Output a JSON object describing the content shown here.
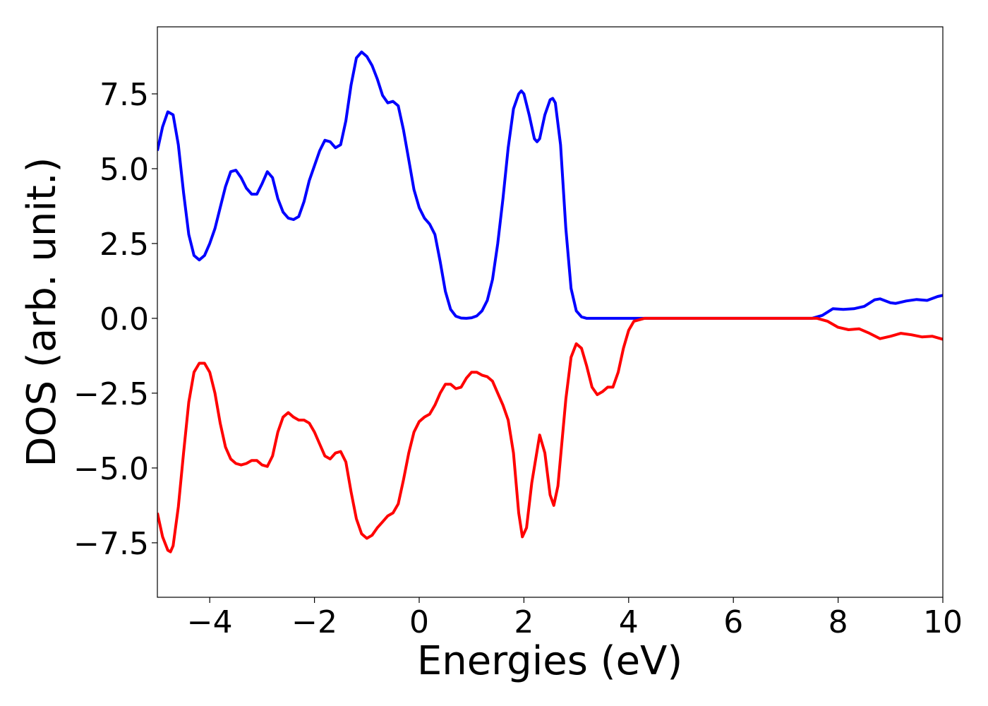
{
  "chart_data": {
    "type": "line",
    "xlabel": "Energies (eV)",
    "ylabel": "DOS (arb. unit.)",
    "xlim": [
      -5,
      10
    ],
    "ylim": [
      -9.32,
      9.74
    ],
    "xticks": [
      {
        "value": -4,
        "label": "−4"
      },
      {
        "value": -2,
        "label": "−2"
      },
      0,
      2,
      4,
      6,
      8,
      10
    ],
    "yticks": [
      {
        "value": -7.5,
        "label": "−7.5"
      },
      {
        "value": -5,
        "label": "−5.0"
      },
      {
        "value": -2.5,
        "label": "−2.5"
      },
      {
        "value": 0,
        "label": "0.0"
      },
      2.5,
      {
        "value": 5,
        "label": "5.0"
      },
      7.5
    ],
    "series": [
      {
        "color": "#0000ff",
        "x": [
          -5.0,
          -4.9,
          -4.8,
          -4.7,
          -4.6,
          -4.5,
          -4.4,
          -4.3,
          -4.2,
          -4.1,
          -4.0,
          -3.9,
          -3.8,
          -3.7,
          -3.6,
          -3.5,
          -3.4,
          -3.3,
          -3.2,
          -3.1,
          -3.0,
          -2.9,
          -2.8,
          -2.7,
          -2.6,
          -2.5,
          -2.4,
          -2.3,
          -2.2,
          -2.1,
          -2.0,
          -1.9,
          -1.8,
          -1.7,
          -1.6,
          -1.5,
          -1.4,
          -1.3,
          -1.2,
          -1.1,
          -1.0,
          -0.9,
          -0.8,
          -0.7,
          -0.6,
          -0.5,
          -0.4,
          -0.3,
          -0.2,
          -0.1,
          0.0,
          0.1,
          0.2,
          0.3,
          0.4,
          0.5,
          0.6,
          0.7,
          0.8,
          0.9,
          1.0,
          1.1,
          1.2,
          1.3,
          1.4,
          1.5,
          1.6,
          1.7,
          1.8,
          1.9,
          1.95,
          2.0,
          2.1,
          2.2,
          2.25,
          2.3,
          2.4,
          2.5,
          2.55,
          2.6,
          2.7,
          2.8,
          2.9,
          3.0,
          3.1,
          3.2,
          4.0,
          6.0,
          7.5,
          7.7,
          7.9,
          8.1,
          8.3,
          8.5,
          8.7,
          8.8,
          9.0,
          9.1,
          9.3,
          9.5,
          9.7,
          9.9,
          10.0
        ],
        "values": [
          5.6,
          6.4,
          6.9,
          6.8,
          5.8,
          4.2,
          2.8,
          2.1,
          1.95,
          2.1,
          2.5,
          3.0,
          3.7,
          4.4,
          4.9,
          4.95,
          4.7,
          4.35,
          4.15,
          4.15,
          4.5,
          4.9,
          4.7,
          4.0,
          3.55,
          3.35,
          3.3,
          3.4,
          3.9,
          4.6,
          5.1,
          5.6,
          5.95,
          5.9,
          5.7,
          5.8,
          6.6,
          7.8,
          8.7,
          8.9,
          8.75,
          8.45,
          8.0,
          7.45,
          7.2,
          7.25,
          7.1,
          6.3,
          5.3,
          4.3,
          3.7,
          3.35,
          3.15,
          2.8,
          1.9,
          0.9,
          0.3,
          0.07,
          0.01,
          0.0,
          0.02,
          0.08,
          0.25,
          0.6,
          1.3,
          2.5,
          4.0,
          5.7,
          7.0,
          7.5,
          7.6,
          7.5,
          6.8,
          6.0,
          5.9,
          6.0,
          6.8,
          7.3,
          7.35,
          7.2,
          5.8,
          3.0,
          1.0,
          0.25,
          0.05,
          0.0,
          0.0,
          0.0,
          0.0,
          0.1,
          0.32,
          0.3,
          0.32,
          0.4,
          0.62,
          0.65,
          0.52,
          0.5,
          0.58,
          0.63,
          0.6,
          0.73,
          0.77
        ]
      },
      {
        "color": "#ff0000",
        "x": [
          -5.0,
          -4.9,
          -4.8,
          -4.75,
          -4.7,
          -4.6,
          -4.5,
          -4.4,
          -4.3,
          -4.2,
          -4.1,
          -4.0,
          -3.9,
          -3.8,
          -3.7,
          -3.6,
          -3.5,
          -3.4,
          -3.3,
          -3.2,
          -3.1,
          -3.0,
          -2.9,
          -2.8,
          -2.7,
          -2.6,
          -2.5,
          -2.4,
          -2.3,
          -2.2,
          -2.1,
          -2.0,
          -1.9,
          -1.8,
          -1.7,
          -1.6,
          -1.5,
          -1.4,
          -1.3,
          -1.2,
          -1.1,
          -1.0,
          -0.9,
          -0.8,
          -0.7,
          -0.6,
          -0.5,
          -0.4,
          -0.3,
          -0.2,
          -0.1,
          0.0,
          0.1,
          0.2,
          0.3,
          0.4,
          0.5,
          0.6,
          0.7,
          0.8,
          0.9,
          1.0,
          1.1,
          1.2,
          1.3,
          1.4,
          1.5,
          1.6,
          1.7,
          1.8,
          1.9,
          1.97,
          2.05,
          2.15,
          2.3,
          2.4,
          2.5,
          2.57,
          2.65,
          2.8,
          2.9,
          3.0,
          3.1,
          3.2,
          3.3,
          3.4,
          3.5,
          3.6,
          3.7,
          3.8,
          3.9,
          4.0,
          4.1,
          4.3,
          7.6,
          7.8,
          8.0,
          8.2,
          8.4,
          8.6,
          8.8,
          9.0,
          9.2,
          9.4,
          9.6,
          9.8,
          10.0
        ],
        "values": [
          -6.5,
          -7.3,
          -7.75,
          -7.8,
          -7.6,
          -6.3,
          -4.5,
          -2.8,
          -1.8,
          -1.5,
          -1.5,
          -1.8,
          -2.5,
          -3.5,
          -4.3,
          -4.7,
          -4.85,
          -4.9,
          -4.85,
          -4.75,
          -4.75,
          -4.9,
          -4.95,
          -4.6,
          -3.8,
          -3.3,
          -3.15,
          -3.3,
          -3.4,
          -3.4,
          -3.5,
          -3.8,
          -4.2,
          -4.6,
          -4.7,
          -4.5,
          -4.45,
          -4.8,
          -5.8,
          -6.7,
          -7.2,
          -7.35,
          -7.25,
          -7.0,
          -6.8,
          -6.6,
          -6.5,
          -6.2,
          -5.4,
          -4.5,
          -3.8,
          -3.45,
          -3.3,
          -3.2,
          -2.9,
          -2.5,
          -2.2,
          -2.2,
          -2.35,
          -2.3,
          -2.0,
          -1.8,
          -1.8,
          -1.9,
          -1.95,
          -2.1,
          -2.5,
          -2.9,
          -3.4,
          -4.5,
          -6.5,
          -7.3,
          -7.0,
          -5.5,
          -3.9,
          -4.5,
          -5.9,
          -6.25,
          -5.6,
          -2.7,
          -1.3,
          -0.85,
          -1.0,
          -1.6,
          -2.3,
          -2.55,
          -2.45,
          -2.3,
          -2.3,
          -1.8,
          -1.0,
          -0.4,
          -0.1,
          0.0,
          0.0,
          -0.1,
          -0.3,
          -0.38,
          -0.35,
          -0.5,
          -0.68,
          -0.6,
          -0.5,
          -0.55,
          -0.62,
          -0.6,
          -0.7
        ]
      }
    ]
  }
}
